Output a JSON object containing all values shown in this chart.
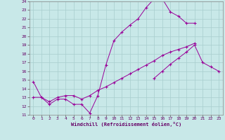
{
  "xlabel": "Windchill (Refroidissement éolien,°C)",
  "xlim": [
    -0.5,
    23.5
  ],
  "ylim": [
    11,
    24
  ],
  "xticks": [
    0,
    1,
    2,
    3,
    4,
    5,
    6,
    7,
    8,
    9,
    10,
    11,
    12,
    13,
    14,
    15,
    16,
    17,
    18,
    19,
    20,
    21,
    22,
    23
  ],
  "yticks": [
    11,
    12,
    13,
    14,
    15,
    16,
    17,
    18,
    19,
    20,
    21,
    22,
    23,
    24
  ],
  "bg_color": "#c8e8e8",
  "grid_color": "#a8cece",
  "line_color": "#990099",
  "lines": [
    {
      "x": [
        0,
        1,
        2,
        3,
        4,
        5,
        6,
        7,
        8,
        9,
        10,
        11,
        12,
        13,
        14,
        15,
        16,
        17,
        18,
        19,
        20
      ],
      "y": [
        14.8,
        13.0,
        12.2,
        12.8,
        12.8,
        12.2,
        12.2,
        11.2,
        13.2,
        16.7,
        19.5,
        20.5,
        21.3,
        22.0,
        23.3,
        24.3,
        24.3,
        22.8,
        22.3,
        21.5,
        21.5
      ]
    },
    {
      "x": [
        0,
        1,
        2,
        3,
        4,
        5,
        6,
        7,
        8,
        9,
        10,
        11,
        12,
        13,
        14,
        15,
        16,
        17,
        18,
        19,
        20,
        21,
        22,
        23
      ],
      "y": [
        13.0,
        13.0,
        12.5,
        13.0,
        13.2,
        13.2,
        12.8,
        13.2,
        13.8,
        14.2,
        14.7,
        15.2,
        15.7,
        16.2,
        16.7,
        17.2,
        17.8,
        18.2,
        18.5,
        18.8,
        19.2,
        null,
        null,
        null
      ]
    },
    {
      "x": [
        0,
        1,
        2,
        3,
        4,
        5,
        6,
        7,
        8,
        9,
        10,
        11,
        12,
        13,
        14,
        15,
        16,
        17,
        18,
        19,
        20,
        21,
        22,
        23
      ],
      "y": [
        null,
        null,
        null,
        null,
        null,
        null,
        null,
        null,
        null,
        null,
        null,
        null,
        null,
        null,
        null,
        15.2,
        16.0,
        16.8,
        17.5,
        18.2,
        19.0,
        17.0,
        16.5,
        16.0
      ]
    }
  ]
}
